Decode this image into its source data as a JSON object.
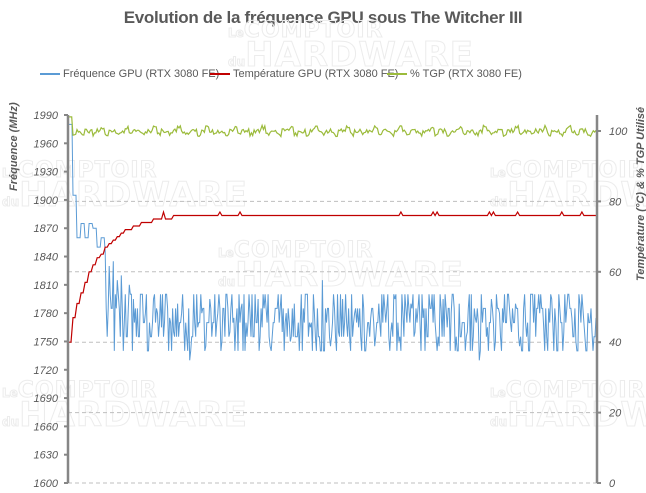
{
  "title": "Evolution de la fréquence GPU sous The Witcher III",
  "watermark": {
    "line1_small": "Le",
    "line1": "COMPTOIR",
    "line2_small": "du",
    "line2": "HARDWARE"
  },
  "legend": [
    {
      "label": "Fréquence GPU (RTX 3080 FE)",
      "color": "#5b9bd5"
    },
    {
      "label": "Température GPU (RTX 3080 FE)",
      "color": "#c00000"
    },
    {
      "label": "% TGP (RTX 3080 FE)",
      "color": "#9bbb3b"
    }
  ],
  "axes": {
    "left_title": "Fréquence (MHz)",
    "right_title": "Température (°C) & % TGP Utilisé",
    "left_ticks": [
      "1990",
      "1960",
      "1930",
      "1900",
      "1870",
      "1840",
      "1810",
      "1780",
      "1750",
      "1720",
      "1690",
      "1660",
      "1630",
      "1600"
    ],
    "right_ticks": [
      "100",
      "80",
      "60",
      "40",
      "20",
      "0"
    ]
  },
  "chart_data": {
    "type": "line",
    "title": "Evolution de la fréquence GPU sous The Witcher III",
    "xlabel": "",
    "ylabel": "Fréquence (MHz)",
    "y2label": "Température (°C) & % TGP Utilisé",
    "ylim": [
      1600,
      1990
    ],
    "y2lim": [
      0,
      100
    ],
    "grid": true,
    "legend_position": "top",
    "x_samples": 132,
    "series": [
      {
        "name": "Fréquence GPU (RTX 3080 FE)",
        "axis": "left",
        "color": "#5b9bd5",
        "values": [
          1980,
          1905,
          1860,
          1875,
          1860,
          1875,
          1870,
          1850,
          1860,
          1845,
          1830,
          1835,
          1815,
          1820,
          1800,
          1810,
          1795,
          1785,
          1800,
          1780,
          1770,
          1795,
          1780,
          1765,
          1800,
          1775,
          1760,
          1790,
          1780,
          1770,
          1730,
          1800,
          1765,
          1780,
          1745,
          1795,
          1770,
          1780,
          1750,
          1800,
          1760,
          1775,
          1740,
          1790,
          1770,
          1780,
          1755,
          1795,
          1765,
          1785,
          1745,
          1770,
          1800,
          1760,
          1780,
          1750,
          1790,
          1770,
          1740,
          1800,
          1765,
          1780,
          1755,
          1815,
          1770,
          1745,
          1785,
          1760,
          1795,
          1770,
          1740,
          1780,
          1765,
          1800,
          1755,
          1775,
          1745,
          1790,
          1770,
          1785,
          1760,
          1795,
          1750,
          1780,
          1770,
          1790,
          1760,
          1800,
          1775,
          1755,
          1785,
          1770,
          1745,
          1795,
          1765,
          1780,
          1740,
          1790,
          1770,
          1760,
          1800,
          1775,
          1730,
          1785,
          1765,
          1795,
          1750,
          1780,
          1770,
          1800,
          1760,
          1790,
          1745,
          1785,
          1770,
          1800,
          1755,
          1780,
          1765,
          1740,
          1795,
          1770,
          1785,
          1760,
          1800,
          1775,
          1750,
          1790,
          1770,
          1780,
          1760,
          1775
        ]
      },
      {
        "name": "Température GPU (RTX 3080 FE)",
        "axis": "right",
        "color": "#c00000",
        "values": [
          40,
          47,
          51,
          54,
          57,
          60,
          62,
          64,
          65,
          67,
          68,
          69,
          70,
          71,
          72,
          72,
          73,
          73,
          74,
          74,
          74,
          75,
          75,
          75,
          75,
          75,
          76,
          76,
          76,
          76,
          76,
          76,
          76,
          76,
          76,
          76,
          76,
          76,
          76,
          76,
          76,
          76,
          76,
          76,
          76,
          76,
          76,
          76,
          76,
          76,
          76,
          76,
          76,
          76,
          76,
          76,
          76,
          76,
          76,
          76,
          76,
          76,
          76,
          76,
          76,
          76,
          76,
          76,
          76,
          76,
          76,
          76,
          76,
          76,
          76,
          76,
          76,
          76,
          76,
          76,
          76,
          76,
          76,
          76,
          76,
          76,
          76,
          76,
          76,
          76,
          76,
          76,
          76,
          76,
          76,
          76,
          76,
          76,
          76,
          76,
          76,
          76,
          76,
          76,
          76,
          76,
          76,
          76,
          76,
          76,
          76,
          76,
          76,
          76,
          76,
          76,
          76,
          76,
          76,
          76,
          76,
          76,
          76,
          76,
          76,
          76,
          76,
          76,
          76,
          76,
          76,
          76
        ]
      },
      {
        "name": "% TGP (RTX 3080 FE)",
        "axis": "right",
        "color": "#9bbb3b",
        "values": [
          104,
          99,
          100,
          99,
          100,
          100,
          99,
          100,
          101,
          99,
          100,
          100,
          99,
          100,
          101,
          99,
          100,
          100,
          99,
          100,
          100,
          101,
          99,
          100,
          100,
          99,
          100,
          101,
          100,
          99,
          100,
          100,
          99,
          100,
          101,
          100,
          99,
          100,
          100,
          99,
          100,
          101,
          99,
          100,
          100,
          99,
          100,
          100,
          101,
          99,
          100,
          100,
          99,
          100,
          100,
          101,
          99,
          100,
          100,
          99,
          100,
          101,
          100,
          99,
          100,
          100,
          99,
          100,
          100,
          101,
          99,
          100,
          100,
          99,
          100,
          100,
          101,
          99,
          100,
          100,
          99,
          100,
          101,
          100,
          99,
          100,
          100,
          99,
          100,
          100,
          101,
          99,
          100,
          100,
          99,
          100,
          100,
          101,
          99,
          100,
          100,
          99,
          100,
          101,
          100,
          99,
          100,
          100,
          99,
          100,
          100,
          101,
          99,
          100,
          100,
          99,
          100,
          100,
          101,
          99,
          100,
          100,
          99,
          100,
          101,
          100,
          99,
          100,
          100,
          99,
          100,
          100
        ]
      }
    ]
  }
}
